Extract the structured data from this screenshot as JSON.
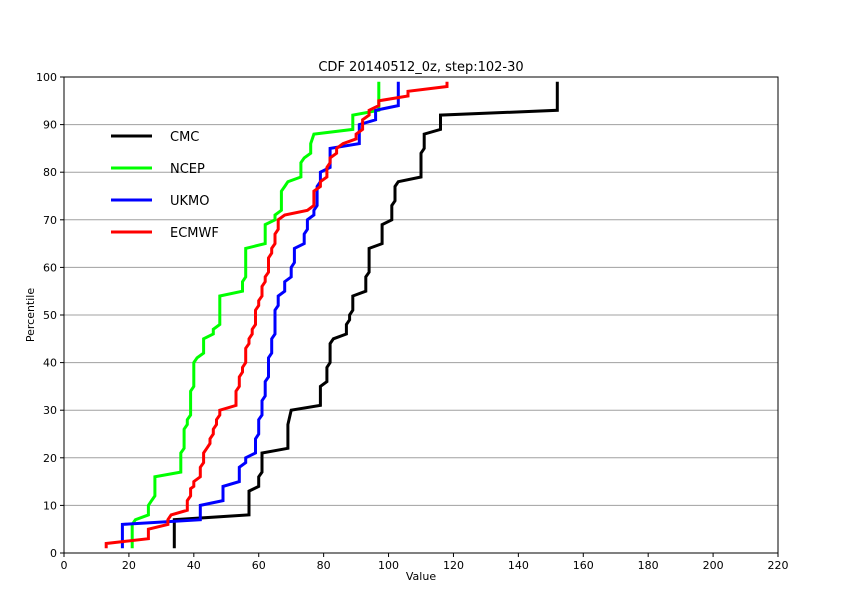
{
  "chart_data": {
    "type": "line",
    "title": "CDF 20140512_0z, step:102-30",
    "xlabel": "Value",
    "ylabel": "Percentile",
    "xlim": [
      0,
      220
    ],
    "ylim": [
      0,
      100
    ],
    "xticks": [
      "0",
      "20",
      "40",
      "60",
      "80",
      "100",
      "120",
      "140",
      "160",
      "180",
      "200",
      "220"
    ],
    "yticks": [
      "0",
      "10",
      "20",
      "30",
      "40",
      "50",
      "60",
      "70",
      "80",
      "90",
      "100"
    ],
    "grid": "horizontal",
    "legend_position": "upper-left",
    "series": [
      {
        "name": "CMC",
        "color": "#000000",
        "points": [
          [
            34,
            1
          ],
          [
            34,
            7
          ],
          [
            57,
            8
          ],
          [
            57,
            13
          ],
          [
            60,
            14
          ],
          [
            60,
            16
          ],
          [
            61,
            17
          ],
          [
            61,
            21
          ],
          [
            69,
            22
          ],
          [
            69,
            27
          ],
          [
            70,
            30
          ],
          [
            79,
            31
          ],
          [
            79,
            35
          ],
          [
            81,
            36
          ],
          [
            81,
            39
          ],
          [
            82,
            40
          ],
          [
            82,
            44
          ],
          [
            83,
            45
          ],
          [
            87,
            46
          ],
          [
            87,
            48
          ],
          [
            88,
            49
          ],
          [
            88,
            50
          ],
          [
            89,
            51
          ],
          [
            89,
            53
          ],
          [
            89,
            54
          ],
          [
            93,
            55
          ],
          [
            93,
            58
          ],
          [
            94,
            59
          ],
          [
            94,
            63
          ],
          [
            94,
            64
          ],
          [
            98,
            65
          ],
          [
            98,
            69
          ],
          [
            101,
            70
          ],
          [
            101,
            73
          ],
          [
            102,
            74
          ],
          [
            102,
            77
          ],
          [
            103,
            78
          ],
          [
            110,
            79
          ],
          [
            110,
            84
          ],
          [
            111,
            85
          ],
          [
            111,
            87
          ],
          [
            111,
            88
          ],
          [
            116,
            89
          ],
          [
            116,
            92
          ],
          [
            152,
            93
          ],
          [
            152,
            99
          ]
        ]
      },
      {
        "name": "NCEP",
        "color": "#00ff00",
        "points": [
          [
            21,
            1
          ],
          [
            21,
            6
          ],
          [
            22,
            7
          ],
          [
            26,
            8
          ],
          [
            26,
            10
          ],
          [
            27,
            11
          ],
          [
            28,
            12
          ],
          [
            28,
            16
          ],
          [
            36,
            17
          ],
          [
            36,
            21
          ],
          [
            37,
            22
          ],
          [
            37,
            26
          ],
          [
            38,
            27
          ],
          [
            38,
            28
          ],
          [
            39,
            29
          ],
          [
            39,
            34
          ],
          [
            40,
            35
          ],
          [
            40,
            40
          ],
          [
            41,
            41
          ],
          [
            43,
            42
          ],
          [
            43,
            44
          ],
          [
            43,
            45
          ],
          [
            46,
            46
          ],
          [
            46,
            47
          ],
          [
            48,
            48
          ],
          [
            48,
            51
          ],
          [
            48,
            54
          ],
          [
            55,
            55
          ],
          [
            55,
            57
          ],
          [
            56,
            58
          ],
          [
            56,
            64
          ],
          [
            62,
            65
          ],
          [
            62,
            69
          ],
          [
            65,
            70
          ],
          [
            65,
            71
          ],
          [
            67,
            72
          ],
          [
            67,
            76
          ],
          [
            68,
            77
          ],
          [
            69,
            78
          ],
          [
            73,
            79
          ],
          [
            73,
            82
          ],
          [
            74,
            83
          ],
          [
            76,
            84
          ],
          [
            76,
            86
          ],
          [
            77,
            88
          ],
          [
            89,
            89
          ],
          [
            89,
            92
          ],
          [
            97,
            93
          ],
          [
            97,
            99
          ]
        ]
      },
      {
        "name": "UKMO",
        "color": "#0000ff",
        "points": [
          [
            18,
            1
          ],
          [
            18,
            6
          ],
          [
            42,
            7
          ],
          [
            42,
            9
          ],
          [
            42,
            10
          ],
          [
            49,
            11
          ],
          [
            49,
            14
          ],
          [
            54,
            15
          ],
          [
            54,
            18
          ],
          [
            56,
            19
          ],
          [
            56,
            20
          ],
          [
            59,
            21
          ],
          [
            59,
            24
          ],
          [
            60,
            25
          ],
          [
            60,
            28
          ],
          [
            61,
            29
          ],
          [
            61,
            32
          ],
          [
            62,
            33
          ],
          [
            62,
            36
          ],
          [
            63,
            37
          ],
          [
            63,
            41
          ],
          [
            64,
            42
          ],
          [
            64,
            43
          ],
          [
            64,
            45
          ],
          [
            65,
            46
          ],
          [
            65,
            51
          ],
          [
            66,
            52
          ],
          [
            66,
            54
          ],
          [
            68,
            55
          ],
          [
            68,
            57
          ],
          [
            70,
            58
          ],
          [
            70,
            60
          ],
          [
            71,
            61
          ],
          [
            71,
            64
          ],
          [
            74,
            65
          ],
          [
            74,
            67
          ],
          [
            75,
            68
          ],
          [
            75,
            70
          ],
          [
            77,
            71
          ],
          [
            77,
            72
          ],
          [
            78,
            73
          ],
          [
            78,
            77
          ],
          [
            79,
            78
          ],
          [
            79,
            80
          ],
          [
            82,
            81
          ],
          [
            82,
            85
          ],
          [
            91,
            86
          ],
          [
            91,
            89
          ],
          [
            91,
            90
          ],
          [
            96,
            91
          ],
          [
            96,
            93
          ],
          [
            103,
            94
          ],
          [
            103,
            99
          ]
        ]
      },
      {
        "name": "ECMWF",
        "color": "#ff0000",
        "points": [
          [
            13,
            1
          ],
          [
            13,
            2
          ],
          [
            26,
            3
          ],
          [
            26,
            5
          ],
          [
            32,
            6
          ],
          [
            32,
            7
          ],
          [
            33,
            8
          ],
          [
            38,
            9
          ],
          [
            38,
            11
          ],
          [
            39,
            12
          ],
          [
            39,
            13
          ],
          [
            39,
            13.5
          ],
          [
            40,
            14
          ],
          [
            40,
            15
          ],
          [
            42,
            16
          ],
          [
            42,
            18
          ],
          [
            43,
            19
          ],
          [
            43,
            21
          ],
          [
            44,
            22
          ],
          [
            45,
            23
          ],
          [
            45,
            24
          ],
          [
            46,
            25
          ],
          [
            46,
            26
          ],
          [
            47,
            27
          ],
          [
            47,
            28
          ],
          [
            48,
            29
          ],
          [
            48,
            30
          ],
          [
            53,
            31
          ],
          [
            53,
            34
          ],
          [
            54,
            35
          ],
          [
            54,
            37
          ],
          [
            55,
            38
          ],
          [
            55,
            39
          ],
          [
            56,
            40
          ],
          [
            56,
            43
          ],
          [
            57,
            44
          ],
          [
            57,
            45
          ],
          [
            58,
            46
          ],
          [
            58,
            47
          ],
          [
            59,
            48
          ],
          [
            59,
            51
          ],
          [
            60,
            52
          ],
          [
            60,
            53
          ],
          [
            61,
            54
          ],
          [
            61,
            56
          ],
          [
            62,
            57
          ],
          [
            62,
            58
          ],
          [
            63,
            59
          ],
          [
            63,
            62
          ],
          [
            64,
            63
          ],
          [
            64,
            64
          ],
          [
            65,
            65
          ],
          [
            65,
            67
          ],
          [
            66,
            68
          ],
          [
            66,
            70
          ],
          [
            68,
            71
          ],
          [
            75,
            72
          ],
          [
            77,
            73
          ],
          [
            77,
            76
          ],
          [
            79,
            77
          ],
          [
            79,
            78
          ],
          [
            81,
            79
          ],
          [
            81,
            81
          ],
          [
            82,
            82
          ],
          [
            82,
            83
          ],
          [
            84,
            84
          ],
          [
            84,
            85
          ],
          [
            86,
            86
          ],
          [
            90,
            87
          ],
          [
            90,
            88
          ],
          [
            92,
            89
          ],
          [
            92,
            91
          ],
          [
            94,
            92
          ],
          [
            94,
            93
          ],
          [
            97,
            94
          ],
          [
            97,
            95
          ],
          [
            106,
            96
          ],
          [
            106,
            97
          ],
          [
            118,
            98
          ],
          [
            118,
            99
          ]
        ]
      }
    ]
  }
}
